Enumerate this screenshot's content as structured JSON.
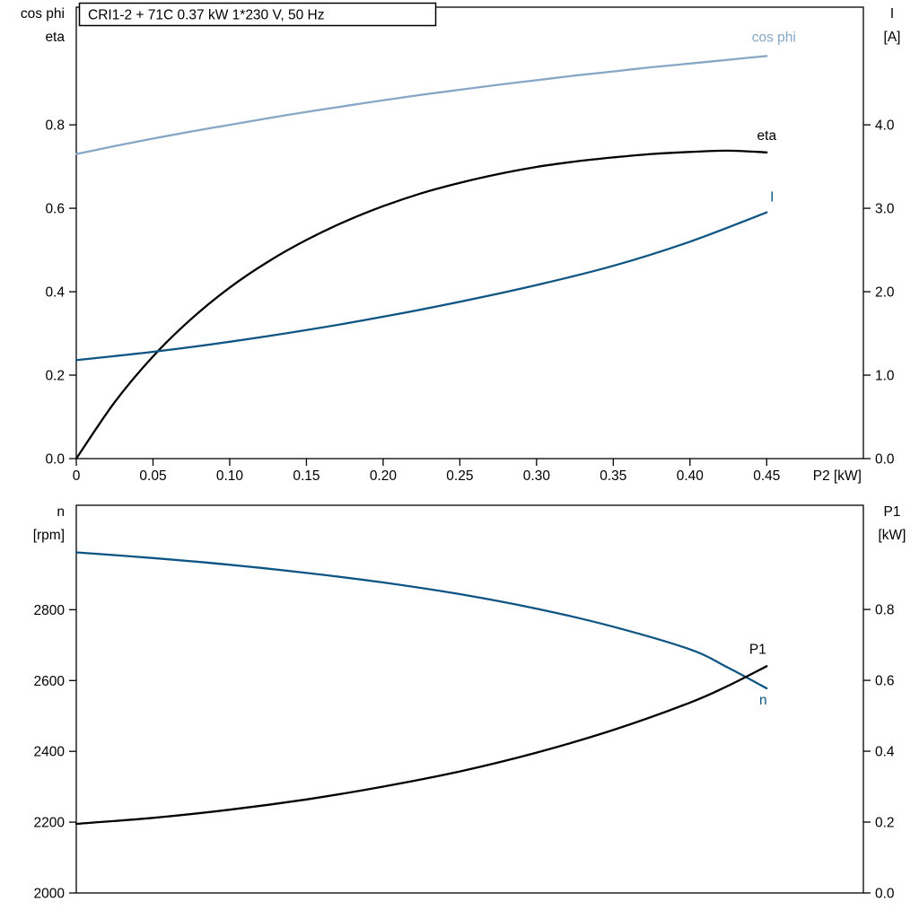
{
  "title_box": {
    "text": "CRI1-2 + 71C   0.37 kW   1*230 V, 50 Hz"
  },
  "colors": {
    "light_blue": "#86a7c6",
    "dark_blue": "#0e5584",
    "black": "#000000",
    "axis": "#000000",
    "background": "#ffffff"
  },
  "chart_data": [
    {
      "type": "line",
      "id": "top-chart",
      "title": "CRI1-2 + 71C   0.37 kW   1*230 V, 50 Hz",
      "grid": false,
      "x_axis": {
        "label": "P2 [kW]",
        "range": [
          0,
          0.513
        ],
        "ticks": [
          0,
          0.05,
          0.1,
          0.15,
          0.2,
          0.25,
          0.3,
          0.35,
          0.4,
          0.45
        ],
        "tick_labels": [
          "0",
          "0.05",
          "0.10",
          "0.15",
          "0.20",
          "0.25",
          "0.30",
          "0.35",
          "0.40",
          "0.45"
        ],
        "show_tick_labels": true
      },
      "left_axis": {
        "title_lines": [
          "cos phi",
          "eta"
        ],
        "range": [
          0,
          1.082
        ],
        "ticks": [
          0,
          0.2,
          0.4,
          0.6,
          0.8
        ],
        "tick_labels": [
          "0.0",
          "0.2",
          "0.4",
          "0.6",
          "0.8"
        ]
      },
      "right_axis": {
        "title_lines": [
          "I",
          "[A]"
        ],
        "range": [
          0,
          5.41
        ],
        "ticks": [
          0,
          1,
          2,
          3,
          4
        ],
        "tick_labels": [
          "0.0",
          "1.0",
          "2.0",
          "3.0",
          "4.0"
        ]
      },
      "series": [
        {
          "name": "cos-phi-curve",
          "label": "cos phi",
          "axis": "left",
          "color_key": "light_blue",
          "label_anchor": "middle",
          "label_offset": [
            8,
            -16
          ],
          "x": [
            0,
            0.025,
            0.05,
            0.075,
            0.1,
            0.125,
            0.15,
            0.175,
            0.2,
            0.225,
            0.25,
            0.275,
            0.3,
            0.325,
            0.35,
            0.375,
            0.4,
            0.425,
            0.45
          ],
          "values": [
            0.73,
            0.749,
            0.767,
            0.784,
            0.8,
            0.816,
            0.831,
            0.845,
            0.859,
            0.872,
            0.884,
            0.896,
            0.907,
            0.918,
            0.928,
            0.938,
            0.947,
            0.956,
            0.965
          ]
        },
        {
          "name": "eta-curve",
          "label": "eta",
          "axis": "left",
          "color_key": "black",
          "label_anchor": "middle",
          "label_offset": [
            0,
            -14
          ],
          "x": [
            0,
            0.025,
            0.05,
            0.075,
            0.1,
            0.125,
            0.15,
            0.175,
            0.2,
            0.225,
            0.25,
            0.275,
            0.3,
            0.325,
            0.35,
            0.375,
            0.4,
            0.425,
            0.45
          ],
          "values": [
            0.0,
            0.135,
            0.245,
            0.335,
            0.41,
            0.472,
            0.524,
            0.568,
            0.605,
            0.636,
            0.661,
            0.682,
            0.699,
            0.712,
            0.722,
            0.73,
            0.735,
            0.738,
            0.734
          ]
        },
        {
          "name": "current-curve",
          "label": "I",
          "axis": "right",
          "color_key": "dark_blue",
          "label_anchor": "middle",
          "label_offset": [
            6,
            -12
          ],
          "x": [
            0,
            0.05,
            0.1,
            0.15,
            0.2,
            0.25,
            0.3,
            0.35,
            0.4,
            0.45
          ],
          "values": [
            1.18,
            1.28,
            1.4,
            1.54,
            1.7,
            1.88,
            2.08,
            2.31,
            2.6,
            2.95
          ]
        }
      ]
    },
    {
      "type": "line",
      "id": "bottom-chart",
      "title": "",
      "grid": false,
      "x_axis": {
        "label": "",
        "range": [
          0,
          0.513
        ],
        "ticks": [],
        "tick_labels": [],
        "show_tick_labels": false
      },
      "left_axis": {
        "title_lines": [
          "n",
          "[rpm]"
        ],
        "range": [
          2000,
          3095
        ],
        "ticks": [
          2000,
          2200,
          2400,
          2600,
          2800
        ],
        "tick_labels": [
          "2000",
          "2200",
          "2400",
          "2600",
          "2800"
        ]
      },
      "right_axis": {
        "title_lines": [
          "P1",
          "[kW]"
        ],
        "range": [
          0,
          1.094
        ],
        "ticks": [
          0,
          0.2,
          0.4,
          0.6,
          0.8
        ],
        "tick_labels": [
          "0.0",
          "0.2",
          "0.4",
          "0.6",
          "0.8"
        ]
      },
      "series": [
        {
          "name": "speed-curve",
          "label": "n",
          "axis": "left",
          "color_key": "dark_blue",
          "label_anchor": "middle",
          "label_offset": [
            -4,
            18
          ],
          "x": [
            0,
            0.05,
            0.1,
            0.15,
            0.2,
            0.25,
            0.3,
            0.35,
            0.4,
            0.425,
            0.45
          ],
          "values": [
            2962,
            2946,
            2927,
            2904,
            2877,
            2844,
            2803,
            2752,
            2688,
            2636,
            2578
          ]
        },
        {
          "name": "p1-curve",
          "label": "P1",
          "axis": "right",
          "color_key": "black",
          "label_anchor": "middle",
          "label_offset": [
            -10,
            -14
          ],
          "x": [
            0,
            0.05,
            0.1,
            0.15,
            0.2,
            0.25,
            0.3,
            0.35,
            0.4,
            0.425,
            0.45
          ],
          "values": [
            0.195,
            0.212,
            0.235,
            0.264,
            0.3,
            0.343,
            0.396,
            0.46,
            0.537,
            0.585,
            0.64
          ]
        }
      ]
    }
  ]
}
